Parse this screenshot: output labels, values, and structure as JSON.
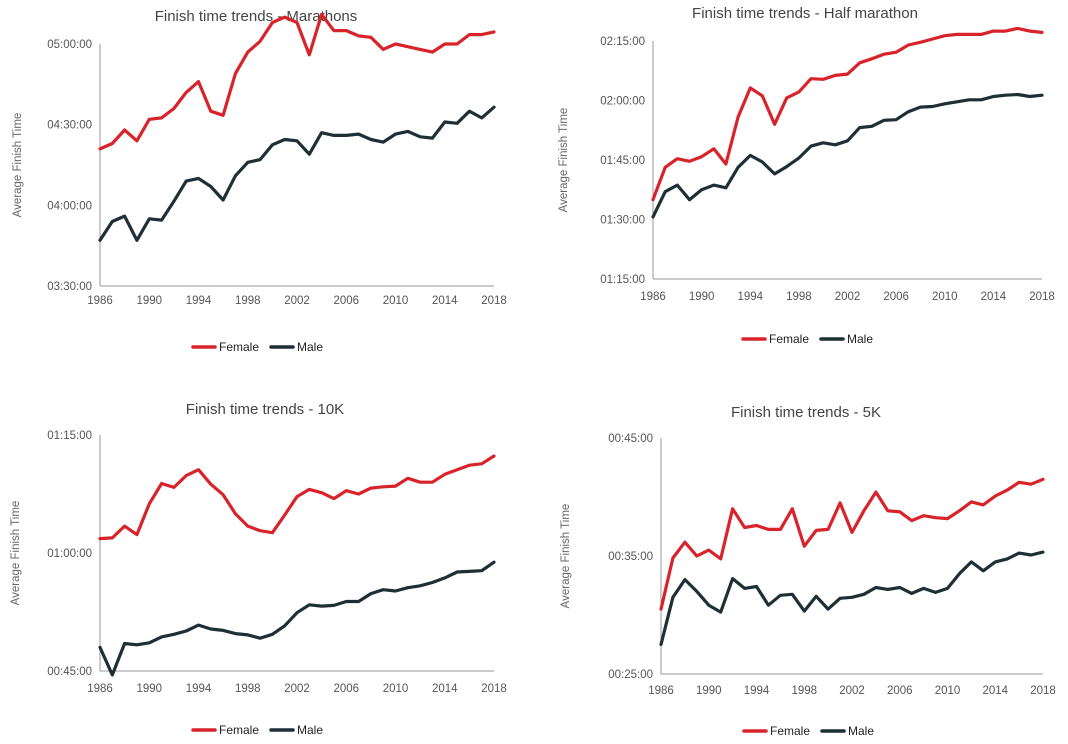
{
  "colors": {
    "female": "#d9232a",
    "male": "#1e2f35"
  },
  "chart_data": [
    {
      "type": "line",
      "title": "Finish time trends - Marathons",
      "ylabel": "Average Finish Time",
      "xlabel": "",
      "x": [
        1986,
        1987,
        1988,
        1989,
        1990,
        1991,
        1992,
        1993,
        1994,
        1995,
        1996,
        1997,
        1998,
        1999,
        2000,
        2001,
        2002,
        2003,
        2004,
        2005,
        2006,
        2007,
        2008,
        2009,
        2010,
        2011,
        2012,
        2013,
        2014,
        2015,
        2016,
        2017,
        2018
      ],
      "xticks": [
        "1986",
        "1990",
        "1994",
        "1998",
        "2002",
        "2006",
        "2010",
        "2014",
        "2018"
      ],
      "ylim": [
        12600,
        18000
      ],
      "yticks": [
        {
          "v": 12600,
          "label": "03:30:00"
        },
        {
          "v": 14400,
          "label": "04:00:00"
        },
        {
          "v": 16200,
          "label": "04:30:00"
        },
        {
          "v": 18000,
          "label": "05:00:00"
        }
      ],
      "series": [
        {
          "name": "Female",
          "values": [
            15660,
            15780,
            16080,
            15840,
            16320,
            16350,
            16560,
            16920,
            17160,
            16500,
            16410,
            17340,
            17820,
            18060,
            18480,
            18600,
            18480,
            17760,
            18660,
            18300,
            18300,
            18180,
            18150,
            17880,
            18000,
            17940,
            17880,
            17820,
            18000,
            18000,
            18210,
            18210,
            18270
          ]
        },
        {
          "name": "Male",
          "values": [
            13620,
            14040,
            14160,
            13620,
            14100,
            14070,
            14490,
            14940,
            15000,
            14820,
            14520,
            15060,
            15360,
            15420,
            15750,
            15870,
            15840,
            15540,
            16020,
            15960,
            15960,
            15990,
            15870,
            15810,
            15990,
            16050,
            15930,
            15900,
            16260,
            16230,
            16500,
            16350,
            16590
          ]
        }
      ]
    },
    {
      "type": "line",
      "title": "Finish time trends - Half marathon",
      "ylabel": "Average Finish Time",
      "xlabel": "",
      "x": [
        1986,
        1987,
        1988,
        1989,
        1990,
        1991,
        1992,
        1993,
        1994,
        1995,
        1996,
        1997,
        1998,
        1999,
        2000,
        2001,
        2002,
        2003,
        2004,
        2005,
        2006,
        2007,
        2008,
        2009,
        2010,
        2011,
        2012,
        2013,
        2014,
        2015,
        2016,
        2017,
        2018
      ],
      "xticks": [
        "1986",
        "1990",
        "1994",
        "1998",
        "2002",
        "2006",
        "2010",
        "2014",
        "2018"
      ],
      "ylim": [
        4500,
        8100
      ],
      "yticks": [
        {
          "v": 4500,
          "label": "01:15:00"
        },
        {
          "v": 5400,
          "label": "01:30:00"
        },
        {
          "v": 6300,
          "label": "01:45:00"
        },
        {
          "v": 7200,
          "label": "02:00:00"
        },
        {
          "v": 8100,
          "label": "02:15:00"
        }
      ],
      "series": [
        {
          "name": "Female",
          "values": [
            5700,
            6190,
            6320,
            6280,
            6350,
            6470,
            6240,
            6950,
            7390,
            7270,
            6840,
            7240,
            7330,
            7530,
            7520,
            7580,
            7600,
            7770,
            7830,
            7900,
            7930,
            8040,
            8080,
            8130,
            8180,
            8200,
            8200,
            8200,
            8250,
            8250,
            8290,
            8250,
            8230
          ]
        },
        {
          "name": "Male",
          "values": [
            5440,
            5820,
            5920,
            5700,
            5850,
            5920,
            5880,
            6190,
            6370,
            6270,
            6090,
            6200,
            6330,
            6510,
            6560,
            6530,
            6590,
            6790,
            6810,
            6900,
            6910,
            7030,
            7100,
            7110,
            7150,
            7180,
            7210,
            7210,
            7260,
            7280,
            7290,
            7260,
            7280
          ]
        }
      ]
    },
    {
      "type": "line",
      "title": "Finish time trends - 10K",
      "ylabel": "Average Finish Time",
      "xlabel": "",
      "x": [
        1986,
        1987,
        1988,
        1989,
        1990,
        1991,
        1992,
        1993,
        1994,
        1995,
        1996,
        1997,
        1998,
        1999,
        2000,
        2001,
        2002,
        2003,
        2004,
        2005,
        2006,
        2007,
        2008,
        2009,
        2010,
        2011,
        2012,
        2013,
        2014,
        2015,
        2016,
        2017,
        2018
      ],
      "xticks": [
        "1986",
        "1990",
        "1994",
        "1998",
        "2002",
        "2006",
        "2010",
        "2014",
        "2018"
      ],
      "ylim": [
        2700,
        4500
      ],
      "yticks": [
        {
          "v": 2700,
          "label": "00:45:00"
        },
        {
          "v": 3600,
          "label": "01:00:00"
        },
        {
          "v": 4500,
          "label": "01:15:00"
        }
      ],
      "series": [
        {
          "name": "Female",
          "values": [
            3710,
            3715,
            3805,
            3740,
            3975,
            4130,
            4100,
            4190,
            4235,
            4125,
            4045,
            3900,
            3805,
            3770,
            3755,
            3890,
            4030,
            4085,
            4060,
            4015,
            4075,
            4050,
            4095,
            4105,
            4110,
            4170,
            4140,
            4140,
            4200,
            4235,
            4270,
            4280,
            4340
          ]
        },
        {
          "name": "Male",
          "values": [
            2880,
            2670,
            2910,
            2900,
            2915,
            2960,
            2980,
            3005,
            3050,
            3020,
            3010,
            2985,
            2975,
            2950,
            2980,
            3045,
            3145,
            3205,
            3195,
            3200,
            3230,
            3230,
            3290,
            3320,
            3310,
            3335,
            3350,
            3375,
            3410,
            3455,
            3460,
            3465,
            3530
          ]
        }
      ]
    },
    {
      "type": "line",
      "title": "Finish time trends - 5K",
      "ylabel": "Average Finish Time",
      "xlabel": "",
      "x": [
        1986,
        1987,
        1988,
        1989,
        1990,
        1991,
        1992,
        1993,
        1994,
        1995,
        1996,
        1997,
        1998,
        1999,
        2000,
        2001,
        2002,
        2003,
        2004,
        2005,
        2006,
        2007,
        2008,
        2009,
        2010,
        2011,
        2012,
        2013,
        2014,
        2015,
        2016,
        2017,
        2018
      ],
      "xticks": [
        "1986",
        "1990",
        "1994",
        "1998",
        "2002",
        "2006",
        "2010",
        "2014",
        "2018"
      ],
      "ylim": [
        1500,
        2700
      ],
      "yticks": [
        {
          "v": 1500,
          "label": "00:25:00"
        },
        {
          "v": 2100,
          "label": "00:35:00"
        },
        {
          "v": 2700,
          "label": "00:45:00"
        }
      ],
      "series": [
        {
          "name": "Female",
          "values": [
            1830,
            2090,
            2170,
            2100,
            2130,
            2085,
            2340,
            2245,
            2255,
            2235,
            2235,
            2340,
            2150,
            2230,
            2235,
            2370,
            2220,
            2330,
            2425,
            2330,
            2325,
            2280,
            2305,
            2295,
            2290,
            2330,
            2375,
            2360,
            2405,
            2435,
            2475,
            2465,
            2490
          ]
        },
        {
          "name": "Male",
          "values": [
            1650,
            1890,
            1980,
            1920,
            1850,
            1815,
            1985,
            1935,
            1945,
            1850,
            1900,
            1905,
            1820,
            1895,
            1830,
            1885,
            1890,
            1905,
            1940,
            1930,
            1940,
            1910,
            1935,
            1915,
            1935,
            2010,
            2070,
            2025,
            2070,
            2085,
            2115,
            2105,
            2120
          ]
        }
      ]
    }
  ]
}
